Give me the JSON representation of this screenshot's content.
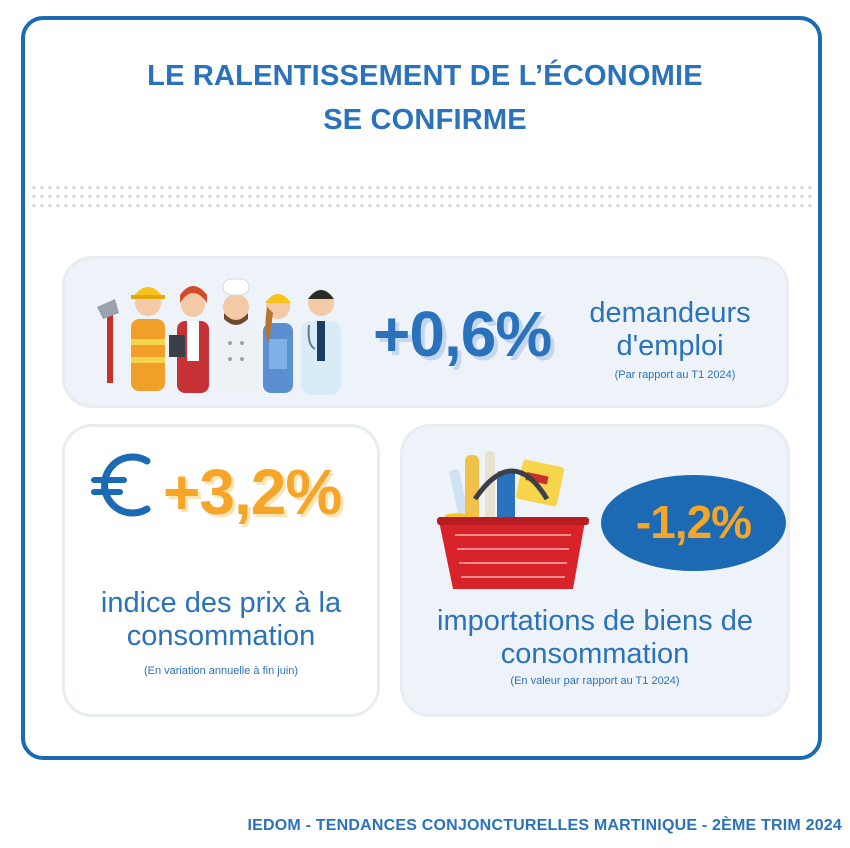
{
  "title": {
    "line1": "LE RALENTISSEMENT DE L’ÉCONOMIE",
    "line2": "SE CONFIRME"
  },
  "jobs": {
    "value": "+0,6%",
    "label": "demandeurs d'emploi",
    "note": "(Par rapport au T1 2024)",
    "icon": "workers-illustration"
  },
  "prices": {
    "value": "+3,2%",
    "label": "indice des prix à la consommation",
    "note": "(En variation annuelle à fin juin)",
    "icon": "euro-icon"
  },
  "imports": {
    "value": "-1,2%",
    "label": "importations de biens de consommation",
    "note": "(En valeur par rapport au T1 2024)",
    "icon": "shopping-basket-illustration"
  },
  "footer": "IEDOM - TENDANCES CONJONCTURELLES MARTINIQUE - 2ÈME TRIM 2024",
  "colors": {
    "primary": "#2a72bb",
    "border": "#1b6ab3",
    "accent": "#f5a527",
    "card_bg": "#eef3fa"
  }
}
